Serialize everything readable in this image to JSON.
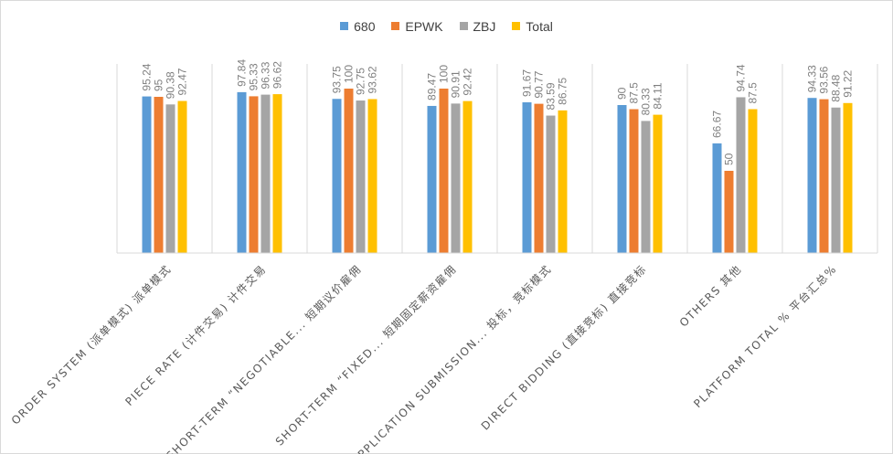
{
  "chart_data": {
    "type": "bar",
    "categories": [
      "ORDER SYSTEM (派单模式) 派单模式",
      "PIECE RATE (计件交易) 计件交易",
      "SHORT-TERM “NEGOTIABLE... 短期议价雇佣",
      "SHORT-TERM “FIXED... 短期固定薪资雇佣",
      "APPLICATION SUBMISSION... 投标，竞标模式",
      "DIRECT BIDDING (直接竞标) 直接竞标",
      "OTHERS 其他",
      "PLATFORM TOTAL % 平台汇总%"
    ],
    "series": [
      {
        "name": "680",
        "color": "#5b9bd5",
        "values": [
          95.24,
          97.84,
          93.75,
          89.47,
          91.67,
          90,
          66.67,
          94.33
        ]
      },
      {
        "name": "EPWK",
        "color": "#ed7d31",
        "values": [
          95,
          95.33,
          100,
          100,
          90.77,
          87.5,
          50,
          93.56
        ]
      },
      {
        "name": "ZBJ",
        "color": "#a5a5a5",
        "values": [
          90.38,
          96.33,
          92.75,
          90.91,
          83.59,
          80.33,
          94.74,
          88.48
        ]
      },
      {
        "name": "Total",
        "color": "#ffc000",
        "values": [
          92.47,
          96.62,
          93.62,
          92.42,
          86.75,
          84.11,
          87.5,
          91.22
        ]
      }
    ],
    "ylim": [
      0,
      100
    ],
    "legend_position": "top",
    "grid": false
  }
}
